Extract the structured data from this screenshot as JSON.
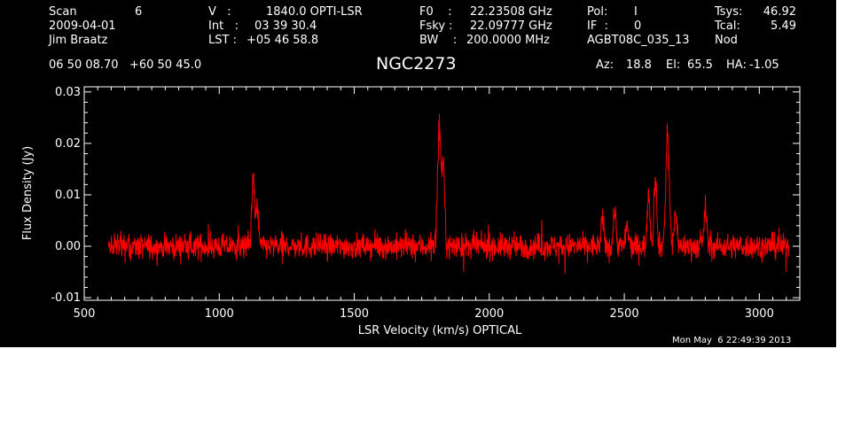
{
  "header": {
    "scan_label": "Scan",
    "scan_value": "6",
    "date": "2009-04-01",
    "observer": "Jim Braatz",
    "v_label": "V   :",
    "v_value": "1840.0 OPTI-LSR",
    "int_label": "Int   :",
    "int_value": "03 39 30.4",
    "lst_label": "LST :",
    "lst_value": "+05 46 58.8",
    "f0_label": "F0    :",
    "f0_value": "22.23508 GHz",
    "fsky_label": "Fsky :",
    "fsky_value": "22.09777 GHz",
    "bw_label": "BW    :",
    "bw_value": "200.0000 MHz",
    "pol_label": "Pol:",
    "pol_value": "I",
    "if_label": "IF  :",
    "if_value": "0",
    "project": "AGBT08C_035_13",
    "tsys_label": "Tsys:",
    "tsys_value": "46.92",
    "tcal_label": "Tcal:",
    "tcal_value": "5.49",
    "mode": "Nod",
    "coords": "06 50 08.70   +60 50 45.0",
    "source": "NGC2273",
    "az_label": "Az:",
    "az_value": "18.8",
    "el_label": "El:",
    "el_value": "65.5",
    "ha_label": "HA:",
    "ha_value": "-1.05"
  },
  "timestamp": "Mon May  6 22:49:39 2013",
  "colors": {
    "background": "#000000",
    "axes": "#ffffff",
    "trace": "#ff0000"
  },
  "chart_data": {
    "type": "line",
    "xlabel": "LSR Velocity (km/s) OPTICAL",
    "ylabel": "Flux Density (Jy)",
    "xlim": [
      500,
      3150
    ],
    "ylim": [
      -0.0105,
      0.031
    ],
    "xticks": [
      500,
      1000,
      1500,
      2000,
      2500,
      3000
    ],
    "xtick_labels": [
      "500",
      "1000",
      "1500",
      "2000",
      "2500",
      "3000"
    ],
    "yticks": [
      -0.01,
      0.0,
      0.01,
      0.02,
      0.03
    ],
    "ytick_labels": [
      "-0.01",
      "0.00",
      "0.01",
      "0.02",
      "0.03"
    ],
    "series": [
      {
        "color": "#ff0000",
        "x_range": [
          590,
          3110
        ],
        "noise_rms_jy": 0.0022,
        "peaks": [
          {
            "x": 1125,
            "y": 0.0135
          },
          {
            "x": 1140,
            "y": 0.008
          },
          {
            "x": 1815,
            "y": 0.022
          },
          {
            "x": 1830,
            "y": 0.015
          },
          {
            "x": 2420,
            "y": 0.005
          },
          {
            "x": 2465,
            "y": 0.007
          },
          {
            "x": 2510,
            "y": 0.004
          },
          {
            "x": 2590,
            "y": 0.011
          },
          {
            "x": 2615,
            "y": 0.014
          },
          {
            "x": 2660,
            "y": 0.022
          },
          {
            "x": 2690,
            "y": 0.007
          },
          {
            "x": 2800,
            "y": 0.0075
          }
        ]
      }
    ]
  }
}
